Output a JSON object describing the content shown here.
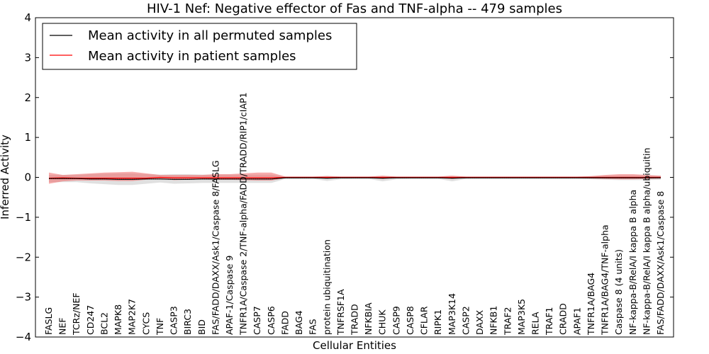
{
  "chart_data": {
    "type": "line",
    "title": "HIV-1 Nef: Negative effector of Fas and TNF-alpha -- 479 samples",
    "xlabel": "Cellular Entities",
    "ylabel": "Inferred Activity",
    "ylim": [
      -4,
      4
    ],
    "yticks": [
      -4,
      -3,
      -2,
      -1,
      0,
      1,
      2,
      3,
      4
    ],
    "ytick_labels": [
      "−4",
      "−3",
      "−2",
      "−1",
      "0",
      "1",
      "2",
      "3",
      "4"
    ],
    "grid": false,
    "legend_position": "top-left",
    "categories": [
      "FASLG",
      "NEF",
      "TCRz/NEF",
      "CD247",
      "BCL2",
      "MAPK8",
      "MAP2K7",
      "CYCS",
      "TNF",
      "CASP3",
      "BIRC3",
      "BID",
      "FAS/FADD/DAXX/Ask1/Caspase 8/FASLG",
      "APAF-1/Caspase 9",
      "TNFR1A/Caspase 2/TNF-alpha/FADD/TRADD/RIP1/cIAP1",
      "CASP7",
      "CASP6",
      "FADD",
      "BAG4",
      "FAS",
      "protein ubiquitination",
      "TNFRSF1A",
      "TRADD",
      "NFKBIA",
      "CHUK",
      "CASP9",
      "CASP8",
      "CFLAR",
      "RIPK1",
      "MAP3K14",
      "CASP2",
      "DAXX",
      "NFKB1",
      "TRAF2",
      "MAP3K5",
      "RELA",
      "TRAF1",
      "CRADD",
      "APAF1",
      "TNFR1A/BAG4",
      "TNFR1A/BAG4/TNF-alpha",
      "Caspase 8 (4 units)",
      "NF-kappa-B/RelA/I kappa B alpha",
      "NF-kappa-B/RelA/I kappa B alpha/ubiquitin",
      "FAS/FADD/DAXX/Ask1/Caspase 8"
    ],
    "series": [
      {
        "name": "Mean activity in all permuted samples",
        "color": "#000000",
        "values": [
          -0.03,
          -0.03,
          -0.03,
          -0.04,
          -0.04,
          -0.05,
          -0.05,
          -0.04,
          -0.04,
          -0.05,
          -0.05,
          -0.04,
          -0.04,
          -0.04,
          -0.04,
          -0.04,
          -0.04,
          -0.01,
          -0.01,
          -0.01,
          -0.02,
          -0.01,
          -0.01,
          -0.01,
          -0.02,
          -0.01,
          -0.01,
          -0.01,
          -0.01,
          -0.02,
          -0.01,
          -0.01,
          -0.01,
          -0.01,
          -0.01,
          -0.01,
          -0.01,
          -0.01,
          -0.01,
          -0.01,
          -0.01,
          -0.01,
          -0.01,
          -0.01,
          -0.01
        ],
        "band_upper": [
          0.06,
          0.06,
          0.06,
          0.08,
          0.09,
          0.1,
          0.1,
          0.08,
          0.07,
          0.08,
          0.08,
          0.07,
          0.07,
          0.07,
          0.07,
          0.07,
          0.07,
          0.02,
          0.02,
          0.02,
          0.04,
          0.02,
          0.02,
          0.02,
          0.04,
          0.02,
          0.02,
          0.02,
          0.02,
          0.04,
          0.02,
          0.02,
          0.02,
          0.02,
          0.02,
          0.02,
          0.02,
          0.02,
          0.02,
          0.03,
          0.04,
          0.05,
          0.05,
          0.05,
          0.04
        ],
        "band_lower": [
          -0.12,
          -0.12,
          -0.12,
          -0.15,
          -0.17,
          -0.19,
          -0.19,
          -0.16,
          -0.13,
          -0.16,
          -0.15,
          -0.14,
          -0.14,
          -0.14,
          -0.14,
          -0.14,
          -0.14,
          -0.04,
          -0.04,
          -0.04,
          -0.09,
          -0.05,
          -0.04,
          -0.04,
          -0.1,
          -0.05,
          -0.04,
          -0.04,
          -0.04,
          -0.1,
          -0.04,
          -0.04,
          -0.04,
          -0.04,
          -0.04,
          -0.04,
          -0.04,
          -0.04,
          -0.04,
          -0.05,
          -0.06,
          -0.07,
          -0.07,
          -0.07,
          -0.06
        ]
      },
      {
        "name": "Mean activity in patient samples",
        "color": "#ff0000",
        "values": [
          -0.02,
          -0.01,
          -0.02,
          -0.02,
          -0.02,
          -0.02,
          -0.02,
          -0.02,
          0.0,
          -0.01,
          -0.01,
          -0.01,
          -0.01,
          -0.01,
          -0.01,
          -0.01,
          -0.01,
          0.0,
          0.0,
          0.0,
          0.0,
          0.0,
          0.0,
          0.0,
          0.0,
          0.0,
          0.0,
          0.0,
          0.0,
          0.0,
          0.0,
          0.0,
          0.0,
          0.0,
          0.0,
          0.0,
          0.0,
          0.0,
          0.0,
          0.0,
          0.0,
          0.0,
          0.0,
          0.0,
          0.0
        ],
        "band_upper": [
          0.12,
          0.06,
          0.08,
          0.1,
          0.12,
          0.13,
          0.14,
          0.1,
          0.06,
          0.06,
          0.06,
          0.06,
          0.08,
          0.08,
          0.1,
          0.12,
          0.12,
          0.02,
          0.02,
          0.02,
          0.03,
          0.02,
          0.02,
          0.02,
          0.04,
          0.02,
          0.02,
          0.02,
          0.02,
          0.04,
          0.02,
          0.02,
          0.02,
          0.02,
          0.02,
          0.02,
          0.02,
          0.02,
          0.02,
          0.03,
          0.06,
          0.08,
          0.08,
          0.06,
          0.04
        ],
        "band_lower": [
          -0.16,
          -0.1,
          -0.08,
          -0.08,
          -0.08,
          -0.09,
          -0.09,
          -0.06,
          -0.03,
          -0.07,
          -0.06,
          -0.05,
          -0.06,
          -0.06,
          -0.07,
          -0.08,
          -0.08,
          -0.02,
          -0.02,
          -0.02,
          -0.03,
          -0.02,
          -0.02,
          -0.02,
          -0.04,
          -0.02,
          -0.02,
          -0.02,
          -0.02,
          -0.04,
          -0.02,
          -0.02,
          -0.02,
          -0.02,
          -0.02,
          -0.02,
          -0.02,
          -0.02,
          -0.02,
          -0.03,
          -0.04,
          -0.05,
          -0.05,
          -0.04,
          -0.03
        ]
      }
    ]
  }
}
